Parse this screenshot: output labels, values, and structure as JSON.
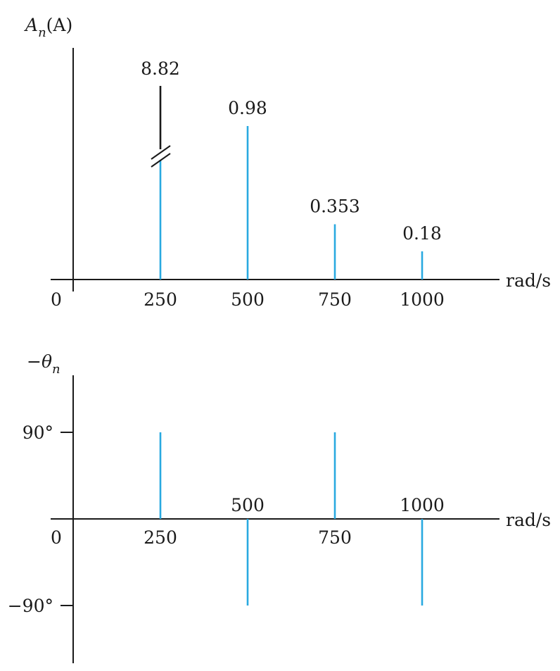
{
  "chart_data": [
    {
      "type": "bar",
      "subtype": "line-spectrum",
      "ylabel_main": "A",
      "ylabel_sub": "n",
      "ylabel_tail": "(A)",
      "xlabel": "rad/s",
      "origin_label": "0",
      "x": [
        250,
        500,
        750,
        1000
      ],
      "x_tick_labels": [
        "250",
        "500",
        "750",
        "1000"
      ],
      "values": [
        8.82,
        0.98,
        0.353,
        0.18
      ],
      "data_labels": [
        "8.82",
        "0.98",
        "0.353",
        "0.18"
      ],
      "axis_break_at_x": 250,
      "stem_color": "#29a9e0",
      "break_color": "#1a1a1a"
    },
    {
      "type": "bar",
      "subtype": "line-spectrum",
      "ylabel_prefix": "−",
      "ylabel_main": "θ",
      "ylabel_sub": "n",
      "xlabel": "rad/s",
      "origin_label": "0",
      "x": [
        250,
        500,
        750,
        1000
      ],
      "x_tick_labels": [
        "250",
        "500",
        "750",
        "1000"
      ],
      "values": [
        90,
        -90,
        90,
        -90
      ],
      "y_ticks": [
        90,
        -90
      ],
      "y_tick_labels": [
        "90°",
        "−90°"
      ],
      "stem_color": "#29a9e0"
    }
  ]
}
